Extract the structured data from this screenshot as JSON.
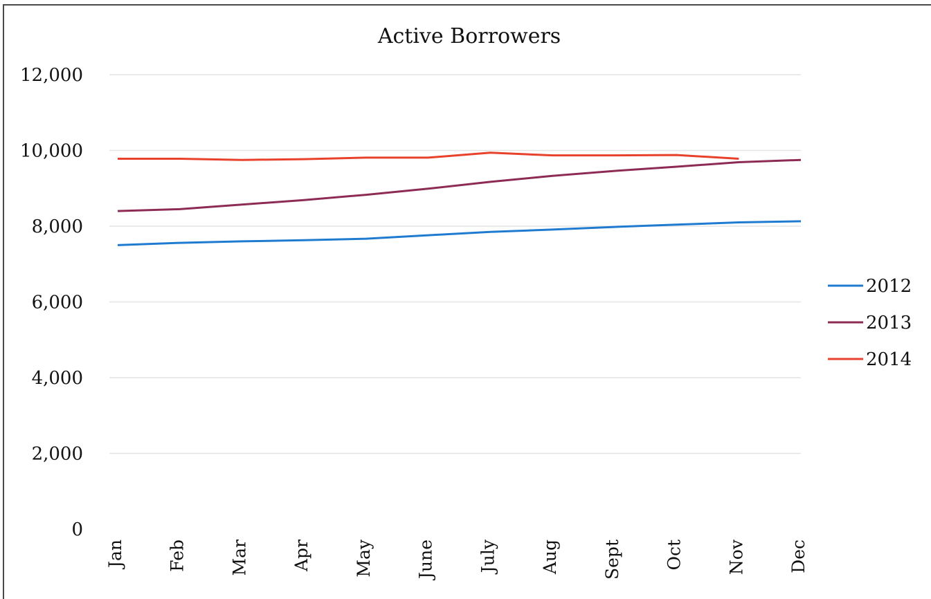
{
  "chart_data": {
    "type": "line",
    "title": "Active Borrowers",
    "xlabel": "",
    "ylabel": "",
    "ylim": [
      0,
      12000
    ],
    "yticks": [
      "0",
      "2,000",
      "4,000",
      "6,000",
      "8,000",
      "10,000",
      "12,000"
    ],
    "ytick_values": [
      0,
      2000,
      4000,
      6000,
      8000,
      10000,
      12000
    ],
    "categories": [
      "Jan",
      "Feb",
      "Mar",
      "Apr",
      "May",
      "June",
      "July",
      "Aug",
      "Sept",
      "Oct",
      "Nov",
      "Dec"
    ],
    "grid": true,
    "legend_position": "right",
    "series": [
      {
        "name": "2012",
        "color": "#1f7bd0",
        "values": [
          7500,
          7560,
          7600,
          7630,
          7670,
          7760,
          7850,
          7910,
          7980,
          8040,
          8100,
          8130
        ]
      },
      {
        "name": "2013",
        "color": "#8e2b55",
        "values": [
          8400,
          8450,
          8570,
          8690,
          8830,
          8990,
          9170,
          9330,
          9460,
          9570,
          9690,
          9750
        ]
      },
      {
        "name": "2014",
        "color": "#e8412c",
        "values": [
          9780,
          9780,
          9750,
          9770,
          9810,
          9810,
          9940,
          9870,
          9870,
          9880,
          9780,
          null
        ]
      }
    ]
  }
}
